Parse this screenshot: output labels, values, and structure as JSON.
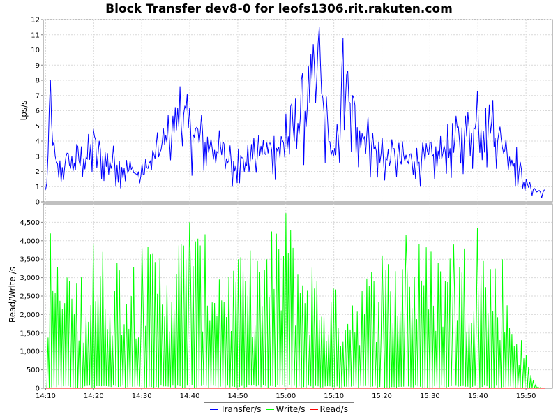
{
  "chart_data": {
    "type": "line",
    "title": "Block Transfer dev8-0 for leofs1306.rit.rakuten.com",
    "x_range": [
      "14:09:30",
      "15:55:30"
    ],
    "x_ticks": [
      "14:10",
      "14:20",
      "14:30",
      "14:40",
      "14:50",
      "15:00",
      "15:10",
      "15:20",
      "15:30",
      "15:40",
      "15:50"
    ],
    "x_tick_minutes": [
      0,
      10,
      20,
      30,
      40,
      50,
      60,
      70,
      80,
      90,
      100
    ],
    "grid": true,
    "legend_position": "bottom",
    "panels": [
      {
        "ylabel": "tps/s",
        "ylim": [
          0,
          12
        ],
        "y_ticks": [
          "0",
          "1",
          "2",
          "3",
          "4",
          "5",
          "6",
          "7",
          "8",
          "9",
          "10",
          "11",
          "12"
        ],
        "series": [
          {
            "name": "Transfer/s",
            "color": "#0000ff",
            "key_points": [
              [
                0,
                0.8
              ],
              [
                1,
                8.0
              ],
              [
                2,
                3.0
              ],
              [
                10,
                4.8
              ],
              [
                20,
                2.5
              ],
              [
                28,
                7.6
              ],
              [
                40,
                3.5
              ],
              [
                50,
                5.8
              ],
              [
                57,
                11.5
              ],
              [
                60,
                3.0
              ],
              [
                62,
                10.8
              ],
              [
                63,
                8.6
              ],
              [
                70,
                4.2
              ],
              [
                80,
                3.9
              ],
              [
                90,
                7.3
              ],
              [
                93,
                6.7
              ],
              [
                98,
                3.6
              ],
              [
                100,
                1.5
              ],
              [
                104,
                0.8
              ]
            ]
          }
        ]
      },
      {
        "ylabel": "Read/Write /s",
        "ylim": [
          0,
          5000
        ],
        "y_ticks": [
          "0",
          "500",
          "1,000",
          "1,500",
          "2,000",
          "2,500",
          "3,000",
          "3,500",
          "4,000",
          "4,500"
        ],
        "series": [
          {
            "name": "Write/s",
            "color": "#00ff00",
            "key_points": [
              [
                0,
                0
              ],
              [
                1,
                4200
              ],
              [
                5,
                2900
              ],
              [
                10,
                3900
              ],
              [
                20,
                3800
              ],
              [
                30,
                4500
              ],
              [
                40,
                3500
              ],
              [
                50,
                4750
              ],
              [
                60,
                2700
              ],
              [
                70,
                3600
              ],
              [
                75,
                4150
              ],
              [
                85,
                3900
              ],
              [
                90,
                4350
              ],
              [
                95,
                3500
              ],
              [
                100,
                900
              ],
              [
                102,
                100
              ],
              [
                104,
                0
              ]
            ]
          },
          {
            "name": "Read/s",
            "color": "#ff0000",
            "key_points": [
              [
                0,
                0
              ],
              [
                104,
                0
              ]
            ]
          }
        ]
      }
    ]
  },
  "legend": [
    {
      "label": "Transfer/s",
      "color": "#0000ff"
    },
    {
      "label": "Write/s",
      "color": "#00ff00"
    },
    {
      "label": "Read/s",
      "color": "#ff0000"
    }
  ]
}
